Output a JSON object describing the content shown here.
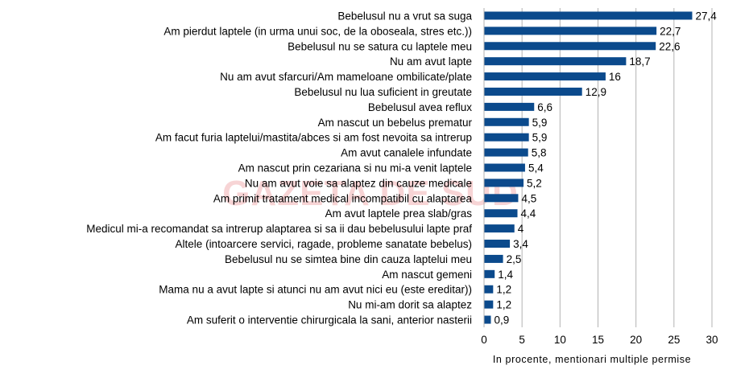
{
  "chart_data": {
    "type": "bar",
    "orientation": "horizontal",
    "xlabel": "In procente, mentionari multiple permise",
    "xlim": [
      0,
      30
    ],
    "xticks": [
      0,
      5,
      10,
      15,
      20,
      25,
      30
    ],
    "grid": true,
    "bar_color": "#0b4a8c",
    "watermark": "GAZETA DE SUD",
    "categories": [
      "Bebelusul nu a vrut sa suga",
      "Am pierdut laptele (in urma unui soc, de la oboseala, stres etc.))",
      "Bebelusul nu se satura cu laptele meu",
      "Nu am avut lapte",
      "Nu am avut sfarcuri/Am mameloane ombilicate/plate",
      "Bebelusul nu lua suficient in greutate",
      "Bebelusul avea reflux",
      "Am nascut un bebelus prematur",
      "Am facut furia laptelui/mastita/abces si am fost nevoita sa intrerup",
      "Am avut canalele infundate",
      "Am nascut prin cezariana si nu mi-a venit laptele",
      "Nu am avut voie sa alaptez din cauze medicale",
      "Am primit tratament medical incompatibil cu alaptarea",
      "Am avut laptele prea slab/gras",
      "Medicul mi-a recomandat sa intrerup alaptarea si sa ii dau bebelusului lapte praf",
      "Altele (intoarcere servici, ragade, probleme sanatate bebelus)",
      "Bebelusul nu se simtea bine din cauza laptelui meu",
      "Am nascut gemeni",
      "Mama nu a avut lapte si atunci nu am avut nici eu (este ereditar))",
      "Nu mi-am dorit sa alaptez",
      "Am suferit o interventie chirurgicala la sani, anterior nasterii"
    ],
    "values": [
      27.4,
      22.7,
      22.6,
      18.7,
      16,
      12.9,
      6.6,
      5.9,
      5.9,
      5.8,
      5.4,
      5.2,
      4.5,
      4.4,
      4,
      3.4,
      2.5,
      1.4,
      1.2,
      1.2,
      0.9
    ],
    "value_labels": [
      "27,4",
      "22,7",
      "22,6",
      "18,7",
      "16",
      "12,9",
      "6,6",
      "5,9",
      "5,9",
      "5,8",
      "5,4",
      "5,2",
      "4,5",
      "4,4",
      "4",
      "3,4",
      "2,5",
      "1,4",
      "1,2",
      "1,2",
      "0,9"
    ]
  }
}
